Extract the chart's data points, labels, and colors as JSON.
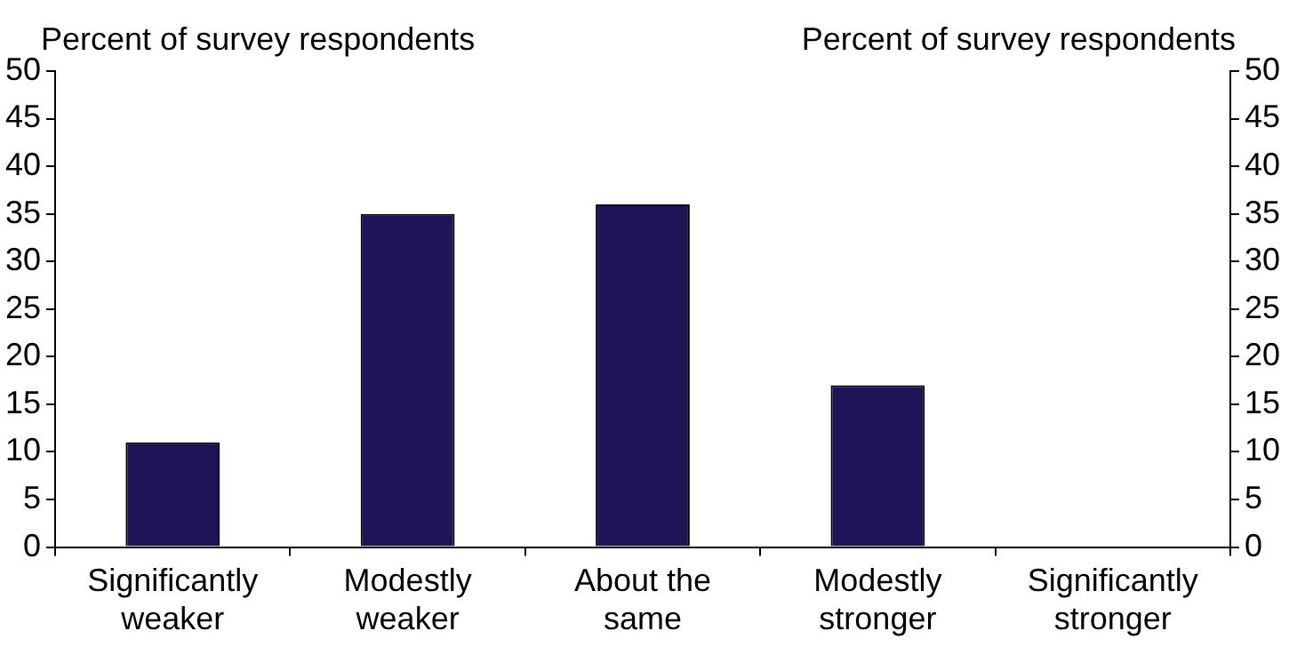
{
  "chart_data": {
    "type": "bar",
    "ylabel": "Percent of survey respondents",
    "y2label": "Percent of survey respondents",
    "categories": [
      "Significantly\nweaker",
      "Modestly\nweaker",
      "About the\nsame",
      "Modestly\nstronger",
      "Significantly\nstronger"
    ],
    "values": [
      11,
      35,
      36,
      17,
      0
    ],
    "color": "#1f1458",
    "ylim": [
      0,
      50
    ],
    "yticks": [
      0,
      5,
      10,
      15,
      20,
      25,
      30,
      35,
      40,
      45,
      50
    ],
    "y2lim": [
      0,
      50
    ],
    "y2ticks": [
      0,
      5,
      10,
      15,
      20,
      25,
      30,
      35,
      40,
      45,
      50
    ],
    "grid": false,
    "legend": false
  }
}
